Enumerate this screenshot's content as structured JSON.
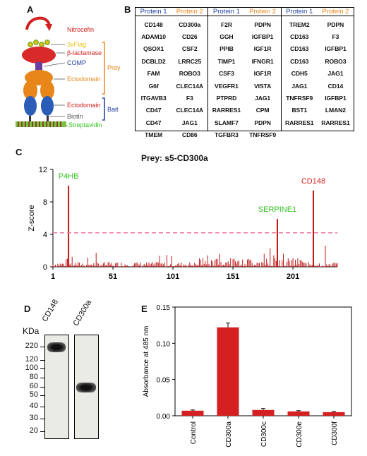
{
  "panel_letters": {
    "a": "A",
    "b": "B",
    "c": "C",
    "d": "D",
    "e": "E"
  },
  "panel_a": {
    "nitrocefin": "Nitrocefin",
    "flag": "3xFlag",
    "beta_lactamase": "β-lactamase",
    "comp": "COMP",
    "prey_ecto": "Ectodomain",
    "prey": "Prey",
    "bait_ecto": "Ectodomain",
    "biotin": "Biotin",
    "bait": "Bait",
    "streptavidin": "Streptavidin",
    "colors": {
      "red": "#d42020",
      "orange": "#e8861a",
      "blue": "#1f3f9f",
      "green": "#33c21f",
      "yellow": "#e8c21a"
    }
  },
  "panel_b": {
    "header_p1": "Protein 1",
    "header_p2": "Protein 2",
    "columns": [
      {
        "rows": [
          [
            "CD148",
            "CD300a"
          ],
          [
            "ADAM10",
            "CD26"
          ],
          [
            "QSOX1",
            "CSF2"
          ],
          [
            "DCBLD2",
            "LRRC25"
          ],
          [
            "FAM",
            "ROBO3"
          ],
          [
            "G6f",
            "CLEC14A"
          ],
          [
            "ITGAVB3",
            "F3"
          ],
          [
            "CD47",
            "CLEC14A"
          ],
          [
            "CD47",
            "JAG1"
          ],
          [
            "TMEM",
            "CD86"
          ]
        ]
      },
      {
        "rows": [
          [
            "F2R",
            "PDPN"
          ],
          [
            "GGH",
            "IGFBP1"
          ],
          [
            "PPIB",
            "IGF1R"
          ],
          [
            "TIMP1",
            "IFNGR1"
          ],
          [
            "CSF3",
            "IGF1R"
          ],
          [
            "VEGFR1",
            "VISTA"
          ],
          [
            "PTPRD",
            "JAG1"
          ],
          [
            "RARRES1",
            "CPM"
          ],
          [
            "SLAMF7",
            "PDPN"
          ],
          [
            "TGFBR3",
            "TNFRSF9"
          ]
        ]
      },
      {
        "rows": [
          [
            "TREM2",
            "PDPN"
          ],
          [
            "CD163",
            "F3"
          ],
          [
            "CD163",
            "IGFBP1"
          ],
          [
            "CD163",
            "ROBO3"
          ],
          [
            "CDH5",
            "JAG1"
          ],
          [
            "JAG1",
            "CD14"
          ],
          [
            "TNFRSF9",
            "IGFBP1"
          ],
          [
            "BST1",
            "LMAN2"
          ],
          [
            "RARRES1",
            "RARRES1"
          ],
          [
            "",
            ""
          ]
        ]
      }
    ]
  },
  "panel_c": {
    "title": "Prey: s5-CD300a",
    "ylabel": "Z-score",
    "yticks": [
      "0",
      "4",
      "8",
      "12"
    ],
    "xticks": [
      "1",
      "51",
      "101",
      "151",
      "201"
    ],
    "threshold": 4.2,
    "ylim": [
      0,
      12
    ],
    "xlim": [
      1,
      238
    ],
    "hits": [
      {
        "name": "P4HB",
        "x": 14,
        "z": 10.0,
        "color": "#33c21f"
      },
      {
        "name": "SERPINE1",
        "x": 188,
        "z": 5.9,
        "color": "#33c21f"
      },
      {
        "name": "CD148",
        "x": 218,
        "z": 9.4,
        "color": "#d42020"
      }
    ]
  },
  "panel_d": {
    "unit": "KDa",
    "ticks": [
      "220",
      "120",
      "100",
      "80",
      "60",
      "50",
      "40",
      "30",
      "20"
    ],
    "lanes": [
      "CD148",
      "CD300a"
    ]
  },
  "chart_data": [
    {
      "type": "bar",
      "title": "",
      "xlabel": "",
      "ylabel": "Absorbance at 485 nm",
      "categories": [
        "Control",
        "CD300a",
        "CD300c",
        "CD300e",
        "CD300f"
      ],
      "values": [
        0.007,
        0.122,
        0.008,
        0.006,
        0.005
      ],
      "errors": [
        0.001,
        0.006,
        0.002,
        0.001,
        0.001
      ],
      "ylim": [
        0,
        0.15
      ],
      "yticks": [
        "0.00",
        "0.05",
        "0.10",
        "0.15"
      ],
      "color": "#d42020",
      "grid": false
    }
  ]
}
